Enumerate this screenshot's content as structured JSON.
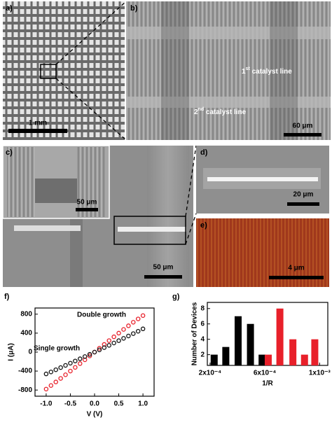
{
  "panels": {
    "a": {
      "label": "a)",
      "scale_bar": "1 mm"
    },
    "b": {
      "label": "b)",
      "scale_bar": "60 μm",
      "annotations": [
        [
          "1",
          "st",
          " catalyst line"
        ],
        [
          "2",
          "nd",
          " catalyst line"
        ]
      ]
    },
    "c": {
      "label": "c)",
      "inset_scale_bar": "50 μm",
      "scale_bar": "50 μm"
    },
    "d": {
      "label": "d)",
      "scale_bar": "20 μm"
    },
    "e": {
      "label": "e)",
      "scale_bar": "4 μm"
    }
  },
  "chart_data": [
    {
      "type": "line",
      "panel_label": "f)",
      "xlabel": "V (V)",
      "ylabel": "I (μA)",
      "x": [
        -1.0,
        -0.9,
        -0.8,
        -0.7,
        -0.6,
        -0.5,
        -0.4,
        -0.3,
        -0.2,
        -0.1,
        0.0,
        0.1,
        0.2,
        0.3,
        0.4,
        0.5,
        0.6,
        0.7,
        0.8,
        0.9,
        1.0
      ],
      "series": [
        {
          "name": "Double growth",
          "color": "#e8202a",
          "values": [
            -780,
            -705,
            -630,
            -555,
            -478,
            -400,
            -322,
            -242,
            -162,
            -81,
            0,
            81,
            162,
            242,
            322,
            400,
            478,
            555,
            630,
            700,
            770
          ]
        },
        {
          "name": "Single growth",
          "color": "#111111",
          "values": [
            -460,
            -418,
            -372,
            -326,
            -280,
            -234,
            -188,
            -141,
            -94,
            -47,
            0,
            47,
            95,
            143,
            192,
            241,
            290,
            340,
            390,
            440,
            490
          ]
        }
      ],
      "xlim": [
        -1.23,
        1.23
      ],
      "ylim": [
        -930,
        930
      ],
      "xticks": [
        {
          "value": -1.0,
          "label": "-1.0"
        },
        {
          "value": -0.5,
          "label": "-0.5"
        },
        {
          "value": 0.0,
          "label": "0.0"
        },
        {
          "value": 0.5,
          "label": "0.5"
        },
        {
          "value": 1.0,
          "label": "1.0"
        }
      ],
      "yticks": [
        -800,
        -400,
        0,
        400,
        800
      ]
    },
    {
      "type": "bar",
      "panel_label": "g)",
      "xlabel": "1/R",
      "ylabel": "Number of Devices",
      "series": [
        {
          "color": "#000000",
          "x": [
            0.00023,
            0.000315,
            0.000405,
            0.000495,
            0.00058
          ],
          "values": [
            2,
            3,
            7,
            6,
            2
          ]
        },
        {
          "color": "#e8202a",
          "x": [
            0.000625,
            0.00071,
            0.000805,
            0.00089,
            0.000965
          ],
          "values": [
            2,
            8,
            4,
            2,
            4
          ]
        }
      ],
      "xlim": [
        0.00018,
        0.00106
      ],
      "ylim": [
        0.6,
        8.8
      ],
      "xticks": [
        {
          "value": 0.0002,
          "label": "2x10⁻⁴"
        },
        {
          "value": 0.0006,
          "label": "6x10⁻⁴"
        },
        {
          "value": 0.001,
          "label": "1x10⁻³"
        }
      ],
      "yticks": [
        2,
        4,
        6,
        8
      ]
    }
  ]
}
